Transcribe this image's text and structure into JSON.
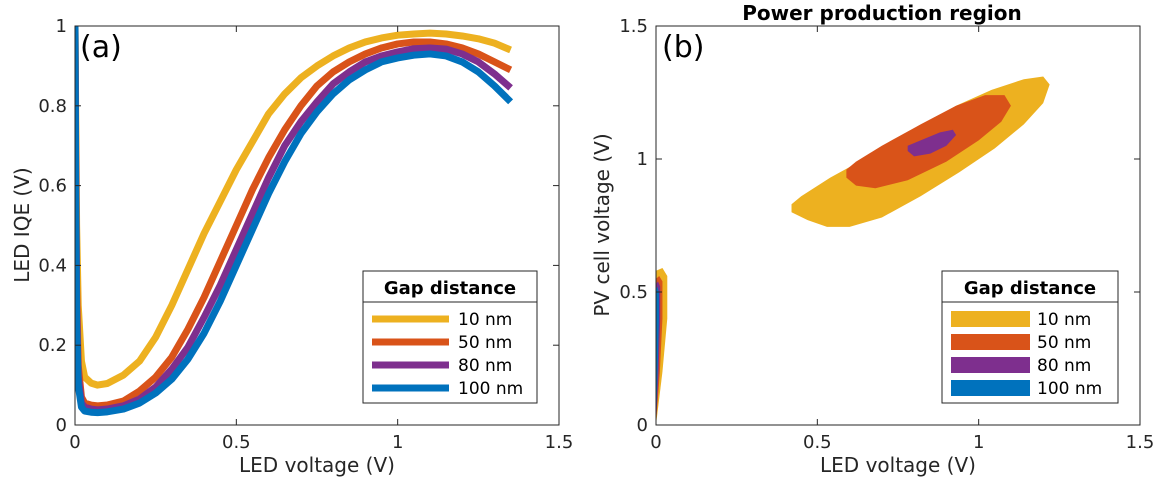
{
  "colors": {
    "10 nm": "#EDB120",
    "50 nm": "#D95319",
    "80 nm": "#7E2F8E",
    "100 nm": "#0072BD"
  },
  "chart_data": [
    {
      "type": "line",
      "panel_label": "(a)",
      "title": "",
      "xlabel": "LED voltage (V)",
      "ylabel": "LED IQE (V)",
      "xlim": [
        0,
        1.5
      ],
      "ylim": [
        0,
        1
      ],
      "xticks": [
        "0",
        "0.5",
        "1",
        "1.5"
      ],
      "yticks": [
        "0",
        "0.2",
        "0.4",
        "0.6",
        "0.8",
        "1"
      ],
      "legend": {
        "title": "Gap distance",
        "placement": "bottom-right"
      },
      "series": [
        {
          "name": "10 nm",
          "x": [
            0.0,
            0.002,
            0.005,
            0.01,
            0.02,
            0.03,
            0.05,
            0.07,
            0.1,
            0.15,
            0.2,
            0.25,
            0.3,
            0.35,
            0.4,
            0.45,
            0.5,
            0.55,
            0.6,
            0.65,
            0.7,
            0.75,
            0.8,
            0.85,
            0.9,
            0.95,
            1.0,
            1.05,
            1.1,
            1.15,
            1.2,
            1.25,
            1.3,
            1.35
          ],
          "y": [
            1.0,
            0.8,
            0.5,
            0.3,
            0.16,
            0.12,
            0.105,
            0.1,
            0.104,
            0.125,
            0.16,
            0.22,
            0.3,
            0.39,
            0.48,
            0.56,
            0.64,
            0.71,
            0.78,
            0.83,
            0.87,
            0.9,
            0.925,
            0.945,
            0.96,
            0.97,
            0.977,
            0.98,
            0.982,
            0.98,
            0.975,
            0.968,
            0.957,
            0.94
          ]
        },
        {
          "name": "50 nm",
          "x": [
            0.0,
            0.002,
            0.005,
            0.01,
            0.02,
            0.03,
            0.05,
            0.07,
            0.1,
            0.15,
            0.2,
            0.25,
            0.3,
            0.35,
            0.4,
            0.45,
            0.5,
            0.55,
            0.6,
            0.65,
            0.7,
            0.75,
            0.8,
            0.85,
            0.9,
            0.95,
            1.0,
            1.05,
            1.1,
            1.15,
            1.2,
            1.25,
            1.3,
            1.35
          ],
          "y": [
            1.0,
            0.7,
            0.35,
            0.15,
            0.07,
            0.055,
            0.05,
            0.048,
            0.05,
            0.06,
            0.085,
            0.12,
            0.17,
            0.24,
            0.32,
            0.41,
            0.5,
            0.59,
            0.67,
            0.74,
            0.8,
            0.85,
            0.885,
            0.91,
            0.93,
            0.945,
            0.955,
            0.96,
            0.96,
            0.955,
            0.945,
            0.93,
            0.91,
            0.89
          ]
        },
        {
          "name": "80 nm",
          "x": [
            0.0,
            0.002,
            0.005,
            0.01,
            0.02,
            0.03,
            0.05,
            0.07,
            0.1,
            0.15,
            0.2,
            0.25,
            0.3,
            0.35,
            0.4,
            0.45,
            0.5,
            0.55,
            0.6,
            0.65,
            0.7,
            0.75,
            0.8,
            0.85,
            0.9,
            0.95,
            1.0,
            1.05,
            1.1,
            1.15,
            1.2,
            1.25,
            1.3,
            1.35
          ],
          "y": [
            1.0,
            0.65,
            0.3,
            0.12,
            0.055,
            0.045,
            0.04,
            0.038,
            0.04,
            0.048,
            0.065,
            0.095,
            0.14,
            0.195,
            0.27,
            0.35,
            0.44,
            0.53,
            0.62,
            0.7,
            0.76,
            0.81,
            0.855,
            0.885,
            0.91,
            0.925,
            0.935,
            0.943,
            0.945,
            0.942,
            0.93,
            0.91,
            0.88,
            0.845
          ]
        },
        {
          "name": "100 nm",
          "x": [
            0.0,
            0.002,
            0.005,
            0.01,
            0.02,
            0.03,
            0.05,
            0.07,
            0.1,
            0.15,
            0.2,
            0.25,
            0.3,
            0.35,
            0.4,
            0.45,
            0.5,
            0.55,
            0.6,
            0.65,
            0.7,
            0.75,
            0.8,
            0.85,
            0.9,
            0.95,
            1.0,
            1.05,
            1.1,
            1.15,
            1.2,
            1.25,
            1.3,
            1.35
          ],
          "y": [
            1.0,
            0.6,
            0.25,
            0.1,
            0.045,
            0.035,
            0.032,
            0.031,
            0.033,
            0.04,
            0.055,
            0.08,
            0.115,
            0.165,
            0.23,
            0.31,
            0.4,
            0.49,
            0.58,
            0.66,
            0.73,
            0.785,
            0.83,
            0.865,
            0.89,
            0.91,
            0.92,
            0.927,
            0.93,
            0.925,
            0.91,
            0.885,
            0.85,
            0.81
          ]
        }
      ]
    },
    {
      "type": "area",
      "panel_label": "(b)",
      "title": "Power production region",
      "xlabel": "LED voltage (V)",
      "ylabel": "PV cell voltage (V)",
      "xlim": [
        0,
        1.5
      ],
      "ylim": [
        0,
        1.5
      ],
      "xticks": [
        "0",
        "0.5",
        "1",
        "1.5"
      ],
      "yticks": [
        "0",
        "0.5",
        "1",
        "1.5"
      ],
      "legend": {
        "title": "Gap distance",
        "placement": "bottom-right"
      },
      "regions": [
        {
          "name": "10 nm",
          "outline": [
            [
              0.42,
              0.8
            ],
            [
              0.47,
              0.77
            ],
            [
              0.53,
              0.745
            ],
            [
              0.6,
              0.745
            ],
            [
              0.7,
              0.78
            ],
            [
              0.82,
              0.86
            ],
            [
              0.94,
              0.95
            ],
            [
              1.05,
              1.04
            ],
            [
              1.14,
              1.13
            ],
            [
              1.2,
              1.21
            ],
            [
              1.22,
              1.28
            ],
            [
              1.2,
              1.31
            ],
            [
              1.14,
              1.3
            ],
            [
              1.04,
              1.26
            ],
            [
              0.93,
              1.2
            ],
            [
              0.8,
              1.11
            ],
            [
              0.66,
              1.01
            ],
            [
              0.54,
              0.93
            ],
            [
              0.45,
              0.86
            ],
            [
              0.42,
              0.83
            ]
          ],
          "near_zero_lobe": [
            [
              0.0,
              0.0
            ],
            [
              0.02,
              0.2
            ],
            [
              0.035,
              0.4
            ],
            [
              0.035,
              0.56
            ],
            [
              0.02,
              0.59
            ],
            [
              0.0,
              0.58
            ]
          ]
        },
        {
          "name": "50 nm",
          "outline": [
            [
              0.59,
              0.93
            ],
            [
              0.62,
              0.9
            ],
            [
              0.68,
              0.89
            ],
            [
              0.78,
              0.92
            ],
            [
              0.9,
              0.99
            ],
            [
              1.0,
              1.07
            ],
            [
              1.07,
              1.14
            ],
            [
              1.1,
              1.2
            ],
            [
              1.08,
              1.24
            ],
            [
              1.02,
              1.24
            ],
            [
              0.93,
              1.2
            ],
            [
              0.82,
              1.13
            ],
            [
              0.7,
              1.05
            ],
            [
              0.62,
              0.99
            ],
            [
              0.59,
              0.96
            ]
          ],
          "near_zero_lobe": [
            [
              0.0,
              0.0
            ],
            [
              0.012,
              0.2
            ],
            [
              0.02,
              0.4
            ],
            [
              0.02,
              0.54
            ],
            [
              0.01,
              0.56
            ],
            [
              0.0,
              0.55
            ]
          ]
        },
        {
          "name": "80 nm",
          "outline": [
            [
              0.78,
              1.03
            ],
            [
              0.8,
              1.01
            ],
            [
              0.85,
              1.02
            ],
            [
              0.9,
              1.05
            ],
            [
              0.93,
              1.09
            ],
            [
              0.92,
              1.11
            ],
            [
              0.88,
              1.1
            ],
            [
              0.82,
              1.07
            ],
            [
              0.78,
              1.05
            ]
          ],
          "near_zero_lobe": [
            [
              0.0,
              0.0
            ],
            [
              0.008,
              0.2
            ],
            [
              0.013,
              0.4
            ],
            [
              0.013,
              0.52
            ],
            [
              0.006,
              0.54
            ],
            [
              0.0,
              0.53
            ]
          ]
        },
        {
          "name": "100 nm",
          "outline": [],
          "near_zero_lobe": [
            [
              0.0,
              0.0
            ],
            [
              0.005,
              0.2
            ],
            [
              0.009,
              0.4
            ],
            [
              0.009,
              0.5
            ],
            [
              0.004,
              0.52
            ],
            [
              0.0,
              0.51
            ]
          ]
        }
      ]
    }
  ]
}
